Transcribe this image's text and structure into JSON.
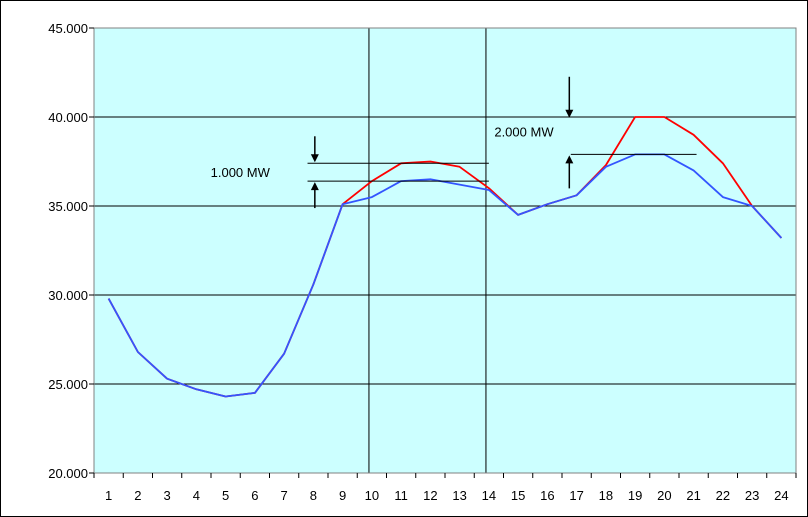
{
  "chart_data": {
    "type": "line",
    "title": "",
    "xlabel": "",
    "ylabel": "",
    "categories": [
      "1",
      "2",
      "3",
      "4",
      "5",
      "6",
      "7",
      "8",
      "9",
      "10",
      "11",
      "12",
      "13",
      "14",
      "15",
      "16",
      "17",
      "18",
      "19",
      "20",
      "21",
      "22",
      "23",
      "24"
    ],
    "ylim": [
      20000,
      45000
    ],
    "y_ticks": [
      20000,
      25000,
      30000,
      35000,
      40000,
      45000
    ],
    "y_tick_labels": [
      "20.000",
      "25.000",
      "30.000",
      "35.000",
      "40.000",
      "45.000"
    ],
    "grid": "horizontal",
    "plot_background": "#ccffff",
    "series": [
      {
        "color": "#ff0000",
        "values": [
          29800,
          26800,
          25300,
          24700,
          24300,
          24500,
          26700,
          30600,
          35100,
          36400,
          37400,
          37500,
          37200,
          36000,
          34500,
          35100,
          35600,
          37300,
          40000,
          40000,
          39000,
          37400,
          35000,
          33200
        ]
      },
      {
        "color": "#3355ff",
        "values": [
          29800,
          26800,
          25300,
          24700,
          24300,
          24500,
          26700,
          30600,
          35100,
          35500,
          36400,
          36500,
          36200,
          35900,
          34500,
          35100,
          35600,
          37200,
          37900,
          37900,
          37000,
          35500,
          35000,
          33200
        ]
      }
    ],
    "annotations": [
      {
        "text": "1.000 MW",
        "upper": 37400,
        "lower": 36400
      },
      {
        "text": "2.000 MW",
        "upper": 39900,
        "lower": 37900
      }
    ]
  }
}
